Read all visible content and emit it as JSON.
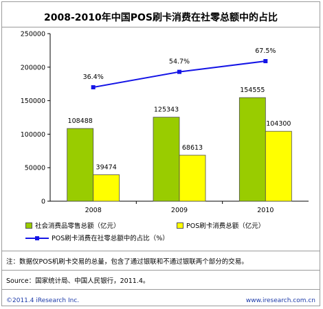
{
  "chart_data": {
    "type": "bar",
    "title": "2008-2010年中国POS刷卡消费在社零总额中的占比",
    "categories": [
      "2008",
      "2009",
      "2010"
    ],
    "series": [
      {
        "name": "社会消费品零售总额（亿元）",
        "type": "bar",
        "color": "#99cc00",
        "values": [
          108488,
          125343,
          154555
        ],
        "labels": [
          "108488",
          "125343",
          "154555"
        ]
      },
      {
        "name": "POS刷卡消费总额（亿元）",
        "type": "bar",
        "color": "#ffff00",
        "values": [
          39474,
          68613,
          104300
        ],
        "labels": [
          "39474",
          "68613",
          "104300"
        ]
      },
      {
        "name": "POS刷卡消费在社零总额中的占比（%）",
        "type": "line",
        "color": "#1414e6",
        "values": [
          36.4,
          54.7,
          67.5
        ],
        "labels": [
          "36.4%",
          "54.7%",
          "67.5%"
        ]
      }
    ],
    "y_ticks": [
      "0",
      "50000",
      "100000",
      "150000",
      "200000",
      "250000"
    ],
    "ylim": [
      0,
      250000
    ],
    "line_scale_note": "line plotted against same axis: 36.4% at ~170000, 54.7% at ~193000, 67.5% at ~209000",
    "line_y_positions": [
      170000,
      193000,
      209000
    ],
    "legend_position": "bottom-left"
  },
  "notes": {
    "note": "注：数据仅POS机刷卡交易的总量，包含了通过银联和不通过银联两个部分的交易。",
    "source": "Source：国家统计局、中国人民银行，2011.4。"
  },
  "footer": {
    "left": "©2011.4 iResearch Inc.",
    "right": "www.iresearch.com.cn"
  }
}
